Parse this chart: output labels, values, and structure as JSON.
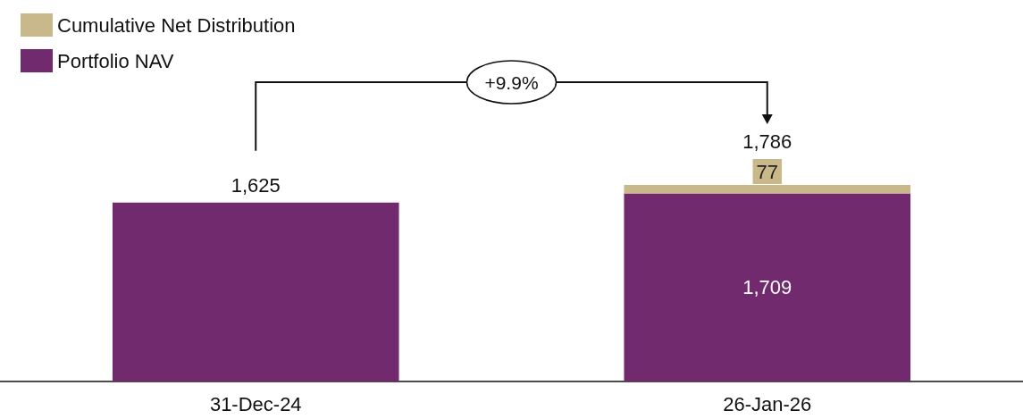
{
  "chart_data": {
    "type": "bar",
    "stacked": true,
    "categories": [
      "31-Dec-24",
      "26-Jan-26"
    ],
    "series": [
      {
        "name": "Portfolio NAV",
        "color": "#722a6e",
        "values": [
          1625,
          1709
        ],
        "value_labels": [
          null,
          "1,709"
        ]
      },
      {
        "name": "Cumulative Net Distribution",
        "color": "#c9b88a",
        "values": [
          null,
          77
        ],
        "value_labels": [
          null,
          "77"
        ]
      }
    ],
    "totals": [
      "1,625",
      "1,786"
    ],
    "annotations": [
      "+9.9%"
    ],
    "legend": "top left",
    "grid": false
  }
}
